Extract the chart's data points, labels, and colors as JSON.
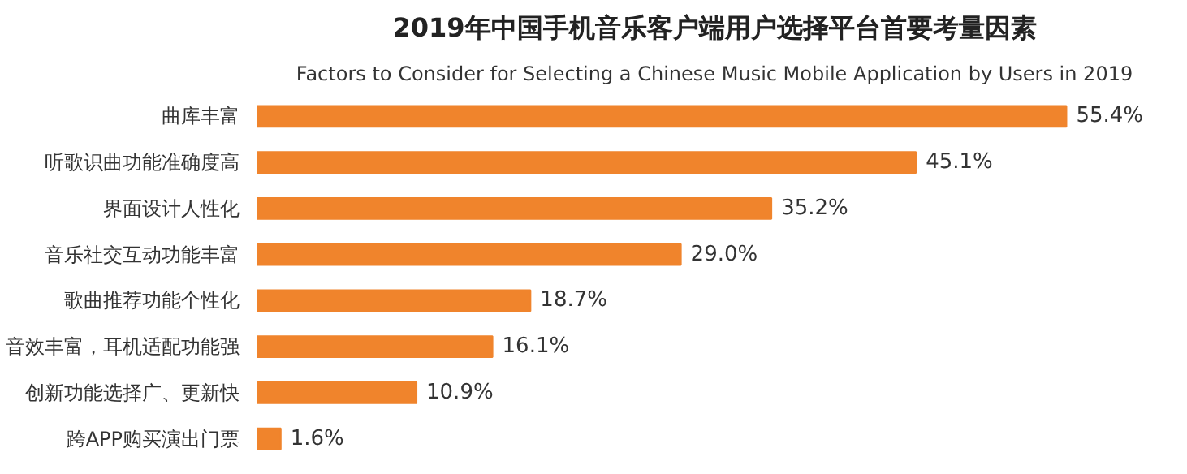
{
  "chart_data": {
    "type": "bar",
    "orientation": "horizontal",
    "title": "2019年中国手机音乐客户端用户选择平台首要考量因素",
    "subtitle": "Factors to Consider for Selecting a Chinese Music Mobile Application by Users in 2019",
    "categories": [
      "曲库丰富",
      "听歌识曲功能准确度高",
      "界面设计人性化",
      "音乐社交互动功能丰富",
      "歌曲推荐功能个性化",
      "音效丰富，耳机适配功能强",
      "创新功能选择广、更新快",
      "跨APP购买演出门票"
    ],
    "values": [
      55.4,
      45.1,
      35.2,
      29.0,
      18.7,
      16.1,
      10.9,
      1.6
    ],
    "value_labels": [
      "55.4%",
      "45.1%",
      "35.2%",
      "29.0%",
      "18.7%",
      "16.1%",
      "10.9%",
      "1.6%"
    ],
    "color": "#f0842c"
  }
}
